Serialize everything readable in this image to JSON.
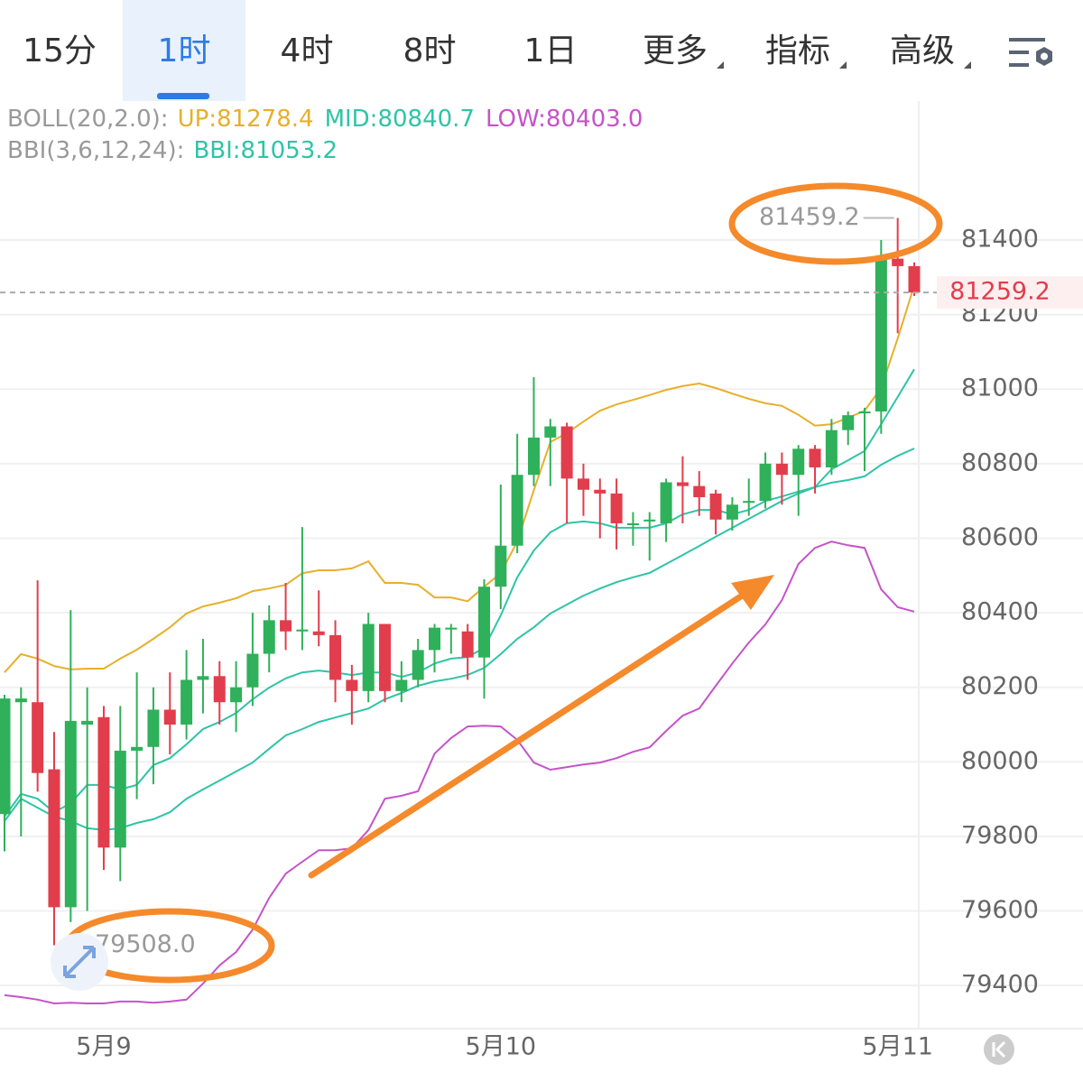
{
  "tabs": [
    {
      "label": "15分",
      "active": false,
      "menu": false
    },
    {
      "label": "1时",
      "active": true,
      "menu": false
    },
    {
      "label": "4时",
      "active": false,
      "menu": false
    },
    {
      "label": "8时",
      "active": false,
      "menu": false
    },
    {
      "label": "1日",
      "active": false,
      "menu": false
    },
    {
      "label": "更多",
      "active": false,
      "menu": true
    },
    {
      "label": "指标",
      "active": false,
      "menu": true
    },
    {
      "label": "高级",
      "active": false,
      "menu": true
    }
  ],
  "chart_data": {
    "type": "candlestick",
    "indicator_groups": [
      {
        "label": "BOLL(20,2.0):",
        "series": [
          1,
          0,
          2
        ]
      },
      {
        "label": "BBI(3,6,12,24):",
        "series": [
          3
        ]
      }
    ],
    "categories": [
      null,
      null,
      null,
      null,
      null,
      null,
      "5月9",
      null,
      null,
      null,
      null,
      null,
      null,
      null,
      null,
      null,
      null,
      null,
      null,
      null,
      null,
      null,
      null,
      null,
      null,
      null,
      null,
      null,
      null,
      null,
      "5月10",
      null,
      null,
      null,
      null,
      null,
      null,
      null,
      null,
      null,
      null,
      null,
      null,
      null,
      null,
      null,
      null,
      null,
      null,
      null,
      null,
      null,
      null,
      null,
      "5月11",
      null
    ],
    "open": [
      79860,
      80160,
      80160,
      79980,
      79610,
      80100,
      80120,
      79770,
      80030,
      80040,
      80140,
      80100,
      80220,
      80230,
      80160,
      80200,
      80290,
      80380,
      80350,
      80350,
      80340,
      80220,
      80190,
      80370,
      80190,
      80220,
      80300,
      80355,
      80350,
      80280,
      80470,
      80580,
      80770,
      80870,
      80900,
      80760,
      80730,
      80720,
      80635,
      80645,
      80640,
      80750,
      80740,
      80720,
      80650,
      80695,
      80700,
      80800,
      80770,
      80840,
      80790,
      80890,
      80935,
      80940,
      81350,
      81330
    ],
    "high": [
      80180,
      80200,
      80487,
      80080,
      80407,
      80200,
      80150,
      80150,
      80240,
      80200,
      80240,
      80300,
      80330,
      80270,
      80270,
      80400,
      80420,
      80480,
      80630,
      80460,
      80380,
      80260,
      80400,
      80370,
      80270,
      80330,
      80370,
      80370,
      80370,
      80490,
      80744,
      80880,
      81032,
      80920,
      80910,
      80800,
      80760,
      80760,
      80670,
      80670,
      80760,
      80820,
      80780,
      80730,
      80710,
      80760,
      80830,
      80830,
      80850,
      80850,
      80920,
      80940,
      80950,
      81400,
      81459.2,
      81340
    ],
    "low": [
      79760,
      79800,
      79920,
      79508,
      79570,
      79600,
      79710,
      79680,
      79900,
      79940,
      80020,
      80060,
      80130,
      80100,
      80080,
      80150,
      80240,
      80300,
      80300,
      80310,
      80160,
      80100,
      80160,
      80160,
      80160,
      80200,
      80240,
      80290,
      80220,
      80170,
      80410,
      80560,
      80740,
      80740,
      80640,
      80660,
      80600,
      80570,
      80580,
      80540,
      80590,
      80640,
      80660,
      80610,
      80620,
      80660,
      80680,
      80690,
      80660,
      80720,
      80770,
      80850,
      80780,
      80880,
      81150,
      81250
    ],
    "close": [
      80170,
      80170,
      79970,
      79610,
      80110,
      80110,
      79770,
      80030,
      80040,
      80140,
      80100,
      80220,
      80230,
      80160,
      80200,
      80290,
      80380,
      80350,
      80355,
      80340,
      80220,
      80190,
      80370,
      80190,
      80220,
      80300,
      80360,
      80360,
      80280,
      80470,
      80580,
      80770,
      80870,
      80900,
      80760,
      80730,
      80720,
      80640,
      80640,
      80650,
      80750,
      80740,
      80710,
      80650,
      80690,
      80700,
      80800,
      80770,
      80840,
      80790,
      80890,
      80930,
      80940,
      81350,
      81330,
      81259.2
    ],
    "up_color": "#2fb05a",
    "down_color": "#e23d4c",
    "series": [
      {
        "name": "MID:80840.7",
        "color": "#2ec4a6",
        "values": [
          79841,
          79901,
          79877,
          79853,
          79841,
          79822,
          79817,
          79822,
          79836,
          79846,
          79865,
          79901,
          79926,
          79950,
          79974,
          79998,
          80035,
          80071,
          80088,
          80107,
          80119,
          80131,
          80143,
          80168,
          80185,
          80204,
          80216,
          80223,
          80233,
          80252,
          80289,
          80330,
          80361,
          80398,
          80422,
          80446,
          80465,
          80482,
          80495,
          80507,
          80531,
          80555,
          80579,
          80604,
          80628,
          80652,
          80676,
          80700,
          80720,
          80737,
          80749,
          80756,
          80766,
          80797,
          80821,
          80840.7
        ]
      },
      {
        "name": "UP:81278.4",
        "color": "#e6b02c",
        "values": [
          80240,
          80289,
          80277,
          80257,
          80248,
          80250,
          80250,
          80277,
          80301,
          80330,
          80361,
          80398,
          80417,
          80427,
          80439,
          80458,
          80465,
          80475,
          80506,
          80514,
          80514,
          80519,
          80538,
          80480,
          80480,
          80475,
          80441,
          80441,
          80431,
          80470,
          80506,
          80591,
          80729,
          80858,
          80882,
          80913,
          80942,
          80959,
          80971,
          80984,
          80998,
          81008,
          81015,
          81003,
          80988,
          80974,
          80962,
          80955,
          80931,
          80902,
          80906,
          80923,
          80942,
          81003,
          81136,
          81278.4
        ]
      },
      {
        "name": "LOW:80403.0",
        "color": "#c553c8",
        "values": [
          79374,
          79369,
          79362,
          79352,
          79354,
          79352,
          79352,
          79357,
          79357,
          79354,
          79357,
          79362,
          79405,
          79454,
          79490,
          79550,
          79635,
          79700,
          79732,
          79763,
          79763,
          79768,
          79817,
          79901,
          79909,
          79921,
          80022,
          80064,
          80095,
          80097,
          80095,
          80059,
          79998,
          79979,
          79986,
          79993,
          79998,
          80010,
          80027,
          80039,
          80083,
          80124,
          80143,
          80204,
          80264,
          80320,
          80369,
          80434,
          80531,
          80574,
          80591,
          80581,
          80574,
          80463,
          80415,
          80403.0
        ]
      },
      {
        "name": "BBI:81053.2",
        "color": "#2ec4a6",
        "values": [
          79853,
          79914,
          79901,
          79865,
          79889,
          79938,
          79938,
          79926,
          79938,
          79991,
          80010,
          80047,
          80088,
          80107,
          80131,
          80168,
          80199,
          80224,
          80240,
          80245,
          80240,
          80233,
          80240,
          80240,
          80228,
          80240,
          80264,
          80277,
          80281,
          80306,
          80393,
          80495,
          80567,
          80616,
          80640,
          80645,
          80640,
          80628,
          80628,
          80628,
          80640,
          80664,
          80676,
          80676,
          80664,
          80676,
          80700,
          80712,
          80725,
          80737,
          80785,
          80809,
          80834,
          80906,
          80979,
          81053.2
        ]
      }
    ],
    "max_label": "81459.2",
    "min_label": "79508.0",
    "last_price_label": "81259.2",
    "ylim": [
      79289,
      81584
    ],
    "yticks": [
      79400,
      79600,
      79800,
      80000,
      80200,
      80400,
      80600,
      80800,
      81000,
      81200,
      81400
    ],
    "grid": true
  }
}
